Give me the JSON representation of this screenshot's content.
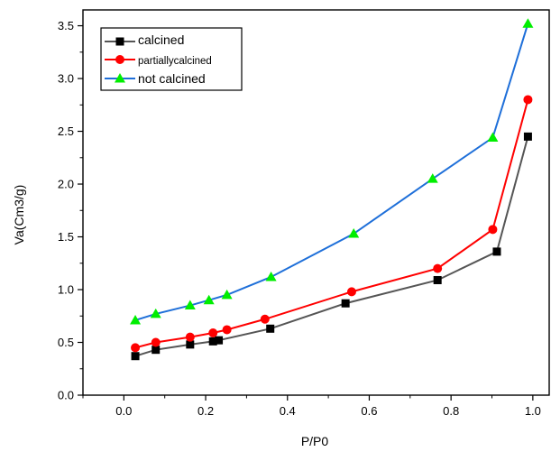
{
  "chart_data": {
    "type": "line",
    "title": "",
    "xlabel": "P/P0",
    "ylabel": "Va(Cm3/g)",
    "xlim": [
      -0.1,
      1.04
    ],
    "ylim": [
      0.0,
      3.65
    ],
    "xticks": [
      0.0,
      0.2,
      0.4,
      0.6,
      0.8,
      1.0
    ],
    "xtick_labels": [
      "0.0",
      "0.2",
      "0.4",
      "0.6",
      "0.8",
      "1.0"
    ],
    "yticks": [
      0.0,
      0.5,
      1.0,
      1.5,
      2.0,
      2.5,
      3.0,
      3.5
    ],
    "ytick_labels": [
      "0.0",
      "0.5",
      "1.0",
      "1.5",
      "2.0",
      "2.5",
      "3.0",
      "3.5"
    ],
    "grid": false,
    "legend_position": "top-left",
    "series": [
      {
        "name": "calcined",
        "color": "#000000",
        "line_color": "#555555",
        "marker": "square",
        "x": [
          0.028,
          0.078,
          0.162,
          0.218,
          0.232,
          0.358,
          0.542,
          0.767,
          0.912,
          0.988
        ],
        "y": [
          0.37,
          0.43,
          0.48,
          0.51,
          0.52,
          0.63,
          0.87,
          1.09,
          1.36,
          2.45
        ]
      },
      {
        "name": "partially calcined",
        "color": "#ff0000",
        "line_color": "#ff0000",
        "marker": "circle",
        "x": [
          0.028,
          0.078,
          0.162,
          0.218,
          0.252,
          0.345,
          0.557,
          0.767,
          0.902,
          0.988
        ],
        "y": [
          0.45,
          0.5,
          0.55,
          0.59,
          0.62,
          0.72,
          0.98,
          1.2,
          1.57,
          2.8
        ]
      },
      {
        "name": "not calcined",
        "color": "#00ee00",
        "line_color": "#1e6fd9",
        "marker": "triangle",
        "x": [
          0.028,
          0.078,
          0.162,
          0.208,
          0.252,
          0.36,
          0.562,
          0.755,
          0.902,
          0.988
        ],
        "y": [
          0.71,
          0.77,
          0.85,
          0.9,
          0.95,
          1.12,
          1.53,
          2.05,
          2.44,
          3.52
        ]
      }
    ],
    "legend_labels": [
      "calcined",
      "partiallycalcined",
      "not calcined"
    ]
  }
}
